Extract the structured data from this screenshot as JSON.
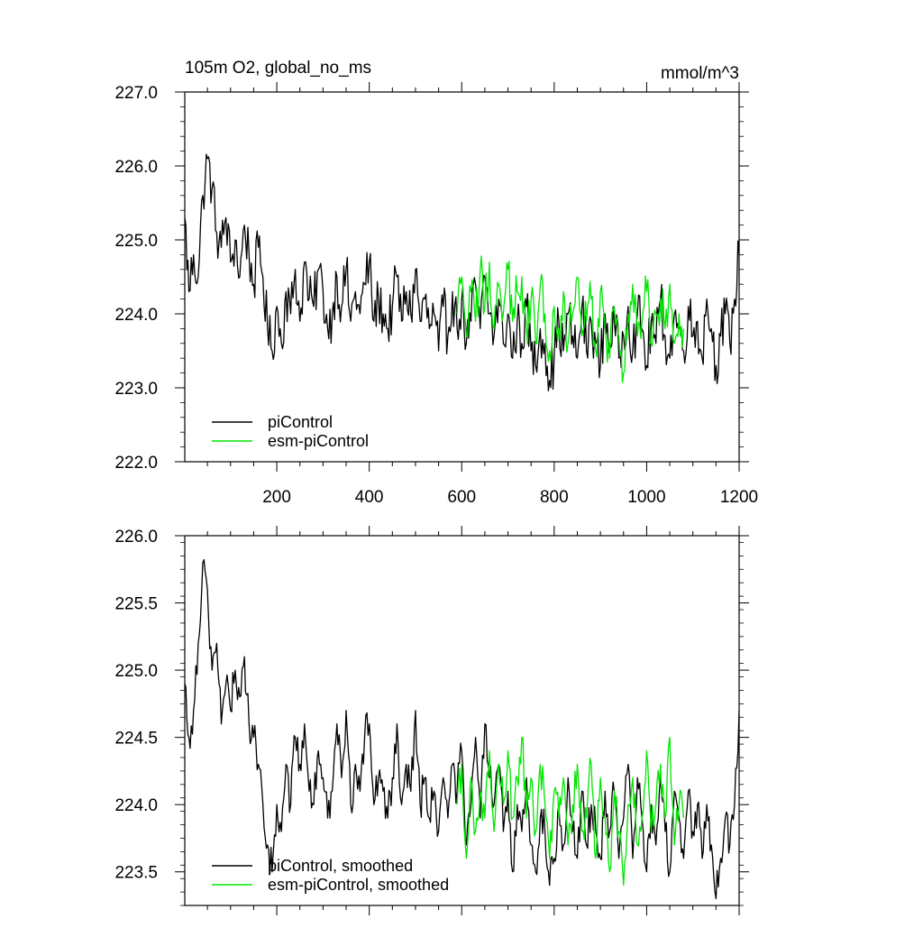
{
  "figure": {
    "title_left": "105m O2, global_no_ms",
    "title_right": "mmol/m^3"
  },
  "colors": {
    "picontrol": "#000000",
    "esm_picontrol": "#00e600",
    "axis": "#000000"
  },
  "chart_data": [
    {
      "type": "line",
      "title": "105m O2, global_no_ms",
      "units": "mmol/m^3",
      "xlim": [
        1,
        1200
      ],
      "ylim": [
        222.0,
        227.0
      ],
      "xticks": [
        200,
        400,
        600,
        800,
        1000,
        1200
      ],
      "xtick_labels": [
        "200",
        "400",
        "600",
        "800",
        "1000",
        "1200"
      ],
      "yticks": [
        222.0,
        223.0,
        224.0,
        225.0,
        226.0,
        227.0
      ],
      "ytick_labels": [
        "222.0",
        "223.0",
        "224.0",
        "225.0",
        "226.0",
        "227.0"
      ],
      "legend_position": "bottom-left",
      "series": [
        {
          "name": "piControl",
          "color": "#000000",
          "x": [
            1,
            10,
            20,
            30,
            40,
            50,
            60,
            70,
            80,
            90,
            100,
            110,
            120,
            130,
            140,
            150,
            160,
            170,
            180,
            190,
            200,
            210,
            220,
            230,
            240,
            250,
            260,
            270,
            280,
            290,
            300,
            310,
            320,
            330,
            340,
            350,
            360,
            370,
            380,
            390,
            400,
            410,
            420,
            430,
            440,
            450,
            460,
            470,
            480,
            490,
            500,
            510,
            520,
            530,
            540,
            550,
            560,
            570,
            580,
            590,
            600,
            610,
            620,
            630,
            640,
            650,
            660,
            670,
            680,
            690,
            700,
            710,
            720,
            730,
            740,
            750,
            760,
            770,
            780,
            790,
            800,
            810,
            820,
            830,
            840,
            850,
            860,
            870,
            880,
            890,
            900,
            910,
            920,
            930,
            940,
            950,
            960,
            970,
            980,
            990,
            1000,
            1010,
            1020,
            1030,
            1040,
            1050,
            1060,
            1070,
            1080,
            1090,
            1100,
            1110,
            1120,
            1130,
            1140,
            1150,
            1160,
            1170,
            1180,
            1190,
            1200
          ],
          "values": [
            225.3,
            224.3,
            224.8,
            224.5,
            225.6,
            226.1,
            225.7,
            225.1,
            224.9,
            225.3,
            224.7,
            225.0,
            224.5,
            225.2,
            224.8,
            224.4,
            224.9,
            224.5,
            223.8,
            223.5,
            224.1,
            223.6,
            224.3,
            224.0,
            224.6,
            223.9,
            224.7,
            224.2,
            224.1,
            224.6,
            224.3,
            223.8,
            224.0,
            224.5,
            224.1,
            224.6,
            223.9,
            224.3,
            224.0,
            224.4,
            224.7,
            223.9,
            224.2,
            224.0,
            223.8,
            224.1,
            224.5,
            223.9,
            224.3,
            224.0,
            224.6,
            223.9,
            224.2,
            223.8,
            224.0,
            223.5,
            224.1,
            223.7,
            224.3,
            223.8,
            224.2,
            223.6,
            223.9,
            224.4,
            223.8,
            224.5,
            224.0,
            223.7,
            224.2,
            223.6,
            224.0,
            223.4,
            223.9,
            223.6,
            224.1,
            223.5,
            223.3,
            223.8,
            223.6,
            223.1,
            223.4,
            223.9,
            223.5,
            224.0,
            223.7,
            223.4,
            224.1,
            223.5,
            223.9,
            223.6,
            223.3,
            224.0,
            223.6,
            223.9,
            223.4,
            223.7,
            224.1,
            223.5,
            224.0,
            223.8,
            223.3,
            223.9,
            223.6,
            224.2,
            223.7,
            223.4,
            224.0,
            223.8,
            223.5,
            224.1,
            223.7,
            223.9,
            223.4,
            224.2,
            223.8,
            223.3,
            223.7,
            224.0,
            223.6,
            224.2,
            224.8
          ],
          "note_x": ""
        },
        {
          "name": "esm-piControl",
          "color": "#00e600",
          "x": [
            590,
            600,
            610,
            620,
            630,
            640,
            650,
            660,
            670,
            680,
            690,
            700,
            710,
            720,
            730,
            740,
            750,
            760,
            770,
            780,
            790,
            800,
            810,
            820,
            830,
            840,
            850,
            860,
            870,
            880,
            890,
            900,
            910,
            920,
            930,
            940,
            950,
            960,
            970,
            980,
            990,
            1000,
            1010,
            1020,
            1030,
            1040,
            1050,
            1060,
            1070,
            1080
          ],
          "values": [
            224.0,
            224.5,
            223.7,
            224.3,
            223.9,
            224.6,
            224.1,
            224.7,
            223.8,
            224.4,
            224.0,
            224.6,
            223.9,
            224.3,
            224.5,
            223.8,
            224.2,
            223.6,
            224.4,
            224.0,
            223.5,
            224.1,
            223.8,
            224.3,
            223.6,
            224.0,
            224.5,
            223.7,
            223.9,
            224.2,
            223.5,
            224.3,
            223.8,
            223.4,
            224.1,
            223.7,
            223.2,
            224.0,
            224.4,
            223.7,
            223.9,
            224.3,
            223.6,
            224.0,
            224.2,
            223.8,
            224.4,
            223.6,
            224.0,
            223.8
          ]
        }
      ]
    },
    {
      "type": "line",
      "xlim": [
        1,
        1200
      ],
      "ylim": [
        223.25,
        226.0
      ],
      "xticks": [
        200,
        400,
        600,
        800,
        1000,
        1200
      ],
      "yticks": [
        223.5,
        224.0,
        224.5,
        225.0,
        225.5,
        226.0
      ],
      "ytick_labels": [
        "223.5",
        "224.0",
        "224.5",
        "225.0",
        "225.5",
        "226.0"
      ],
      "legend_position": "bottom-left",
      "series": [
        {
          "name": "piControl, smoothed",
          "color": "#000000",
          "x": [
            1,
            10,
            20,
            30,
            40,
            50,
            60,
            70,
            80,
            90,
            100,
            110,
            120,
            130,
            140,
            150,
            160,
            170,
            180,
            190,
            200,
            210,
            220,
            230,
            240,
            250,
            260,
            270,
            280,
            290,
            300,
            310,
            320,
            330,
            340,
            350,
            360,
            370,
            380,
            390,
            400,
            410,
            420,
            430,
            440,
            450,
            460,
            470,
            480,
            490,
            500,
            510,
            520,
            530,
            540,
            550,
            560,
            570,
            580,
            590,
            600,
            610,
            620,
            630,
            640,
            650,
            660,
            670,
            680,
            690,
            700,
            710,
            720,
            730,
            740,
            750,
            760,
            770,
            780,
            790,
            800,
            810,
            820,
            830,
            840,
            850,
            860,
            870,
            880,
            890,
            900,
            910,
            920,
            930,
            940,
            950,
            960,
            970,
            980,
            990,
            1000,
            1010,
            1020,
            1030,
            1040,
            1050,
            1060,
            1070,
            1080,
            1090,
            1100,
            1110,
            1120,
            1130,
            1140,
            1150,
            1160,
            1170,
            1180,
            1190,
            1200
          ],
          "values": [
            224.9,
            224.5,
            224.7,
            225.2,
            225.8,
            225.6,
            225.0,
            225.2,
            224.6,
            224.9,
            224.7,
            225.0,
            224.8,
            225.1,
            224.6,
            224.5,
            224.3,
            224.0,
            223.7,
            223.5,
            224.0,
            223.8,
            224.3,
            224.0,
            224.5,
            224.3,
            224.6,
            224.1,
            224.0,
            224.4,
            224.2,
            223.9,
            224.1,
            224.6,
            224.2,
            224.7,
            224.0,
            224.3,
            224.1,
            224.5,
            224.6,
            224.0,
            224.2,
            224.1,
            223.9,
            224.2,
            224.6,
            224.0,
            224.3,
            224.1,
            224.7,
            224.0,
            224.2,
            223.9,
            224.1,
            223.8,
            224.2,
            223.9,
            224.3,
            224.1,
            224.4,
            223.7,
            224.0,
            224.5,
            223.9,
            224.6,
            224.2,
            224.0,
            224.3,
            223.8,
            224.1,
            223.5,
            224.0,
            223.8,
            224.2,
            223.7,
            223.5,
            223.9,
            223.8,
            223.4,
            223.6,
            224.0,
            223.7,
            224.2,
            223.8,
            223.6,
            224.1,
            223.7,
            224.0,
            223.8,
            223.6,
            224.1,
            223.8,
            224.1,
            223.6,
            223.9,
            224.3,
            223.6,
            224.2,
            223.9,
            223.5,
            224.0,
            223.7,
            224.2,
            223.8,
            223.5,
            224.1,
            223.9,
            223.6,
            224.1,
            223.8,
            224.0,
            223.6,
            224.0,
            223.7,
            223.3,
            223.6,
            223.9,
            223.7,
            224.0,
            224.7
          ]
        },
        {
          "name": "esm-piControl, smoothed",
          "color": "#00e600",
          "x": [
            590,
            600,
            610,
            620,
            630,
            640,
            650,
            660,
            670,
            680,
            690,
            700,
            710,
            720,
            730,
            740,
            750,
            760,
            770,
            780,
            790,
            800,
            810,
            820,
            830,
            840,
            850,
            860,
            870,
            880,
            890,
            900,
            910,
            920,
            930,
            940,
            950,
            960,
            970,
            980,
            990,
            1000,
            1010,
            1020,
            1030,
            1040,
            1050,
            1060,
            1070,
            1080
          ],
          "values": [
            224.0,
            224.3,
            223.6,
            224.2,
            223.8,
            224.1,
            223.9,
            224.4,
            223.8,
            224.3,
            224.0,
            224.4,
            223.9,
            224.2,
            224.5,
            223.9,
            224.2,
            223.8,
            224.3,
            224.0,
            223.6,
            224.1,
            223.9,
            224.2,
            223.7,
            224.0,
            224.3,
            223.8,
            223.9,
            224.3,
            223.6,
            224.2,
            223.9,
            223.5,
            224.1,
            223.8,
            223.4,
            224.0,
            224.2,
            223.7,
            223.9,
            224.4,
            223.8,
            224.0,
            224.3,
            223.9,
            224.5,
            223.7,
            224.0,
            223.9
          ]
        }
      ]
    }
  ]
}
